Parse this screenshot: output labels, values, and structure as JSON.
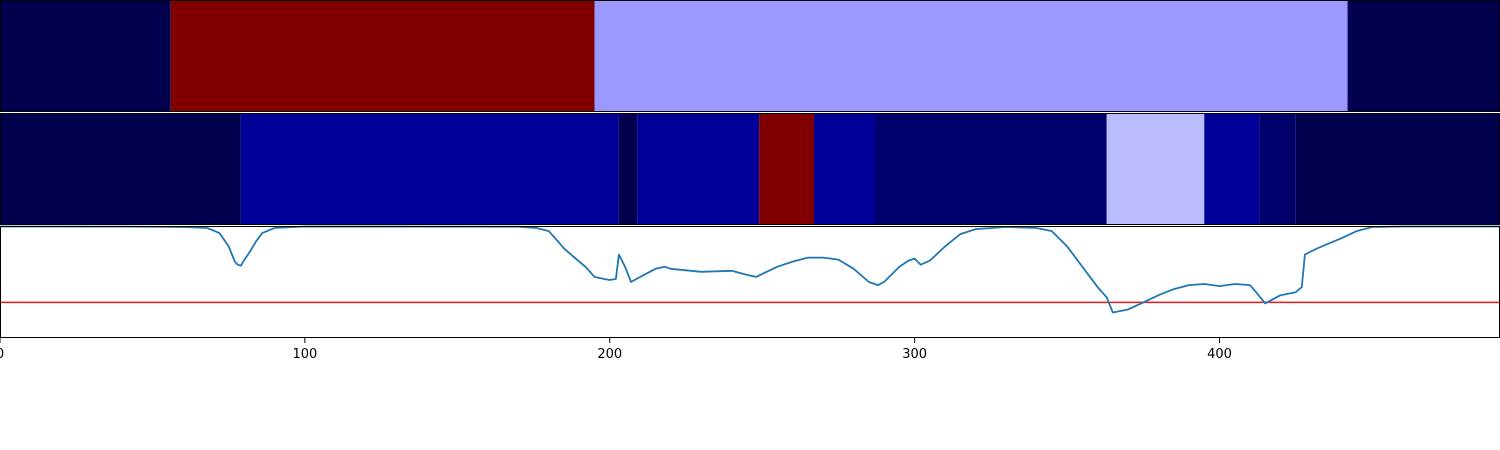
{
  "chart_data": {
    "type": "heatmap",
    "x_range": [
      0,
      492
    ],
    "x_ticks": [
      0,
      100,
      200,
      300,
      400
    ],
    "x_tick_labels": [
      "0",
      "100",
      "200",
      "300",
      "400"
    ],
    "colormap": "seismic",
    "segment_rows": [
      {
        "segments": [
          {
            "start": 0,
            "end": 56,
            "color": "#00004c"
          },
          {
            "start": 56,
            "end": 195,
            "color": "#800000"
          },
          {
            "start": 195,
            "end": 442,
            "color": "#9999ff"
          },
          {
            "start": 442,
            "end": 492,
            "color": "#00004c"
          }
        ]
      },
      {
        "segments": [
          {
            "start": 0,
            "end": 79,
            "color": "#00004c"
          },
          {
            "start": 79,
            "end": 203,
            "color": "#000099"
          },
          {
            "start": 203,
            "end": 209,
            "color": "#00004c"
          },
          {
            "start": 209,
            "end": 249,
            "color": "#000099"
          },
          {
            "start": 249,
            "end": 267,
            "color": "#800000"
          },
          {
            "start": 267,
            "end": 287,
            "color": "#000099"
          },
          {
            "start": 287,
            "end": 363,
            "color": "#00006a"
          },
          {
            "start": 363,
            "end": 395,
            "color": "#bbbbff"
          },
          {
            "start": 395,
            "end": 413,
            "color": "#000099"
          },
          {
            "start": 413,
            "end": 425,
            "color": "#00006a"
          },
          {
            "start": 425,
            "end": 492,
            "color": "#00004c"
          }
        ]
      }
    ],
    "line_panel": {
      "ylim": [
        -0.1,
        1.0
      ],
      "threshold": 0.25,
      "line_color": "#1f77b4",
      "threshold_color": "#e41a1c",
      "points": [
        [
          0,
          0.995
        ],
        [
          40,
          0.994
        ],
        [
          60,
          0.99
        ],
        [
          68,
          0.98
        ],
        [
          72,
          0.93
        ],
        [
          75,
          0.8
        ],
        [
          77,
          0.65
        ],
        [
          78,
          0.62
        ],
        [
          79,
          0.61
        ],
        [
          80,
          0.66
        ],
        [
          82,
          0.75
        ],
        [
          84,
          0.85
        ],
        [
          86,
          0.93
        ],
        [
          90,
          0.98
        ],
        [
          100,
          0.995
        ],
        [
          170,
          0.993
        ],
        [
          176,
          0.98
        ],
        [
          180,
          0.95
        ],
        [
          183,
          0.85
        ],
        [
          185,
          0.78
        ],
        [
          188,
          0.7
        ],
        [
          192,
          0.6
        ],
        [
          195,
          0.5
        ],
        [
          198,
          0.48
        ],
        [
          200,
          0.47
        ],
        [
          202,
          0.48
        ],
        [
          203,
          0.72
        ],
        [
          205,
          0.6
        ],
        [
          207,
          0.45
        ],
        [
          210,
          0.5
        ],
        [
          215,
          0.58
        ],
        [
          218,
          0.6
        ],
        [
          220,
          0.58
        ],
        [
          230,
          0.55
        ],
        [
          240,
          0.56
        ],
        [
          245,
          0.52
        ],
        [
          248,
          0.5
        ],
        [
          250,
          0.53
        ],
        [
          255,
          0.6
        ],
        [
          260,
          0.65
        ],
        [
          265,
          0.69
        ],
        [
          270,
          0.69
        ],
        [
          275,
          0.67
        ],
        [
          280,
          0.58
        ],
        [
          285,
          0.45
        ],
        [
          288,
          0.42
        ],
        [
          290,
          0.45
        ],
        [
          295,
          0.6
        ],
        [
          298,
          0.66
        ],
        [
          300,
          0.68
        ],
        [
          302,
          0.62
        ],
        [
          305,
          0.66
        ],
        [
          310,
          0.8
        ],
        [
          315,
          0.92
        ],
        [
          320,
          0.97
        ],
        [
          330,
          0.99
        ],
        [
          340,
          0.98
        ],
        [
          345,
          0.95
        ],
        [
          350,
          0.8
        ],
        [
          355,
          0.6
        ],
        [
          360,
          0.4
        ],
        [
          363,
          0.3
        ],
        [
          365,
          0.15
        ],
        [
          370,
          0.18
        ],
        [
          375,
          0.25
        ],
        [
          380,
          0.32
        ],
        [
          385,
          0.38
        ],
        [
          390,
          0.42
        ],
        [
          395,
          0.43
        ],
        [
          400,
          0.41
        ],
        [
          405,
          0.43
        ],
        [
          410,
          0.42
        ],
        [
          412,
          0.35
        ],
        [
          415,
          0.24
        ],
        [
          420,
          0.32
        ],
        [
          425,
          0.35
        ],
        [
          427,
          0.4
        ],
        [
          428,
          0.72
        ],
        [
          432,
          0.78
        ],
        [
          440,
          0.88
        ],
        [
          445,
          0.95
        ],
        [
          450,
          0.99
        ],
        [
          460,
          0.995
        ],
        [
          492,
          0.995
        ]
      ]
    }
  }
}
